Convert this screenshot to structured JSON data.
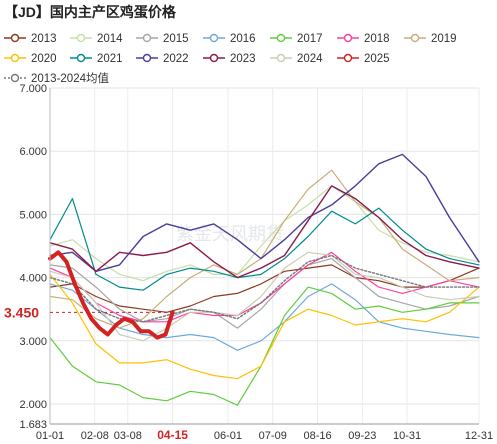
{
  "page": {
    "title": "【JD】国内主产区鸡蛋价格",
    "watermark": "紫金天风期货"
  },
  "chart_data": {
    "type": "line",
    "title": "【JD】国内主产区鸡蛋价格",
    "xlabel": "",
    "ylabel": "",
    "x_range": [
      1,
      365
    ],
    "ylim": [
      1.683,
      7.0
    ],
    "y_ticks": [
      1.683,
      2.0,
      3.0,
      4.0,
      5.0,
      6.0,
      7.0
    ],
    "y_tick_labels": [
      "1.683",
      "2.000",
      "3.000",
      "4.000",
      "5.000",
      "6.000",
      "7.000"
    ],
    "x_ticks": [
      {
        "day": 1,
        "label": "01-01"
      },
      {
        "day": 39,
        "label": "02-08"
      },
      {
        "day": 67,
        "label": "03-08"
      },
      {
        "day": 105,
        "label": "04-15"
      },
      {
        "day": 152,
        "label": "06-01"
      },
      {
        "day": 190,
        "label": "07-09"
      },
      {
        "day": 228,
        "label": "08-16"
      },
      {
        "day": 266,
        "label": "09-23"
      },
      {
        "day": 304,
        "label": "10-31"
      },
      {
        "day": 365,
        "label": "12-31"
      }
    ],
    "highlight_tick": "04-15",
    "current_value_label": "3.450",
    "legend_position": "top",
    "grid": true,
    "series": [
      {
        "name": "2013",
        "color": "#8b3a1e",
        "width": 1.2,
        "dash": "",
        "x": [
          1,
          20,
          40,
          60,
          80,
          100,
          120,
          140,
          160,
          180,
          200,
          220,
          240,
          260,
          280,
          300,
          320,
          340,
          365
        ],
        "y": [
          3.85,
          3.9,
          3.7,
          3.55,
          3.5,
          3.45,
          3.55,
          3.7,
          3.75,
          3.9,
          4.1,
          4.15,
          4.2,
          4.0,
          3.95,
          3.85,
          3.85,
          3.95,
          4.15
        ]
      },
      {
        "name": "2014",
        "color": "#c6dfa8",
        "width": 1.2,
        "dash": "",
        "x": [
          1,
          20,
          40,
          60,
          80,
          100,
          120,
          140,
          160,
          180,
          200,
          220,
          240,
          260,
          280,
          300,
          320,
          340,
          365
        ],
        "y": [
          4.5,
          4.6,
          4.3,
          4.05,
          3.95,
          4.1,
          4.2,
          4.05,
          4.05,
          4.5,
          4.9,
          5.15,
          5.45,
          5.2,
          4.75,
          4.55,
          4.4,
          4.35,
          4.25
        ]
      },
      {
        "name": "2015",
        "color": "#a6a6a6",
        "width": 1.2,
        "dash": "",
        "x": [
          1,
          20,
          40,
          60,
          80,
          100,
          120,
          140,
          160,
          180,
          200,
          220,
          240,
          260,
          280,
          300,
          320,
          340,
          365
        ],
        "y": [
          4.2,
          4.15,
          3.85,
          3.5,
          3.3,
          3.35,
          3.5,
          3.45,
          3.2,
          3.5,
          3.9,
          4.2,
          4.3,
          4.0,
          3.7,
          3.6,
          3.5,
          3.55,
          3.7
        ]
      },
      {
        "name": "2016",
        "color": "#6fa8dc",
        "width": 1.2,
        "dash": "",
        "x": [
          1,
          20,
          40,
          60,
          80,
          100,
          120,
          140,
          160,
          180,
          200,
          220,
          240,
          260,
          280,
          300,
          320,
          340,
          365
        ],
        "y": [
          3.9,
          3.8,
          3.5,
          3.2,
          3.1,
          3.05,
          3.1,
          3.05,
          2.85,
          3.0,
          3.3,
          3.7,
          3.9,
          3.65,
          3.3,
          3.2,
          3.15,
          3.1,
          3.05
        ]
      },
      {
        "name": "2017",
        "color": "#5fcd3c",
        "width": 1.2,
        "dash": "",
        "x": [
          1,
          20,
          40,
          60,
          80,
          100,
          120,
          140,
          160,
          180,
          200,
          220,
          240,
          260,
          280,
          300,
          320,
          340,
          365
        ],
        "y": [
          3.05,
          2.6,
          2.35,
          2.3,
          2.1,
          2.05,
          2.2,
          2.15,
          1.98,
          2.6,
          3.4,
          3.85,
          3.75,
          3.5,
          3.55,
          3.45,
          3.5,
          3.6,
          3.6
        ]
      },
      {
        "name": "2018",
        "color": "#ff3fa4",
        "width": 1.2,
        "dash": "",
        "x": [
          1,
          20,
          40,
          60,
          80,
          100,
          120,
          140,
          160,
          180,
          200,
          220,
          240,
          260,
          280,
          300,
          320,
          340,
          365
        ],
        "y": [
          4.15,
          4.0,
          3.6,
          3.4,
          3.3,
          3.3,
          3.45,
          3.4,
          3.4,
          3.6,
          3.9,
          4.2,
          4.4,
          4.1,
          3.85,
          3.75,
          3.85,
          3.95,
          3.85
        ]
      },
      {
        "name": "2019",
        "color": "#c8ad78",
        "width": 1.2,
        "dash": "",
        "x": [
          1,
          20,
          40,
          60,
          80,
          100,
          120,
          140,
          160,
          180,
          200,
          220,
          240,
          260,
          280,
          300,
          320,
          340,
          365
        ],
        "y": [
          3.7,
          3.65,
          3.35,
          3.2,
          3.35,
          3.7,
          4.0,
          4.2,
          4.05,
          4.3,
          4.9,
          5.4,
          5.7,
          5.2,
          4.95,
          4.45,
          4.2,
          3.95,
          4.0
        ]
      },
      {
        "name": "2020",
        "color": "#ffc000",
        "width": 1.2,
        "dash": "",
        "x": [
          1,
          20,
          40,
          60,
          80,
          100,
          120,
          140,
          160,
          180,
          200,
          220,
          240,
          260,
          280,
          300,
          320,
          340,
          365
        ],
        "y": [
          4.05,
          3.6,
          2.95,
          2.65,
          2.65,
          2.7,
          2.55,
          2.45,
          2.4,
          2.6,
          3.3,
          3.5,
          3.4,
          3.25,
          3.3,
          3.35,
          3.3,
          3.45,
          3.85
        ]
      },
      {
        "name": "2021",
        "color": "#008b8b",
        "width": 1.2,
        "dash": "",
        "x": [
          1,
          20,
          40,
          60,
          80,
          100,
          120,
          140,
          160,
          180,
          200,
          220,
          240,
          260,
          280,
          300,
          320,
          340,
          365
        ],
        "y": [
          4.6,
          5.25,
          4.05,
          3.85,
          3.8,
          4.05,
          4.15,
          4.1,
          4.0,
          4.05,
          4.3,
          4.65,
          5.05,
          4.85,
          5.1,
          4.75,
          4.45,
          4.3,
          4.2
        ]
      },
      {
        "name": "2022",
        "color": "#4b3c9c",
        "width": 1.4,
        "dash": "",
        "x": [
          1,
          20,
          40,
          60,
          80,
          100,
          120,
          140,
          160,
          180,
          200,
          220,
          240,
          260,
          280,
          300,
          320,
          340,
          365
        ],
        "y": [
          4.35,
          4.4,
          4.1,
          4.2,
          4.65,
          4.85,
          4.75,
          4.85,
          4.6,
          4.3,
          4.6,
          4.95,
          5.15,
          5.45,
          5.8,
          5.95,
          5.6,
          4.95,
          4.25
        ]
      },
      {
        "name": "2023",
        "color": "#8b1a4a",
        "width": 1.4,
        "dash": "",
        "x": [
          1,
          20,
          40,
          60,
          80,
          100,
          120,
          140,
          160,
          180,
          200,
          220,
          240,
          260,
          280,
          300,
          320,
          340,
          365
        ],
        "y": [
          4.55,
          4.45,
          4.1,
          4.4,
          4.35,
          4.4,
          4.55,
          4.25,
          4.0,
          4.15,
          4.35,
          4.9,
          5.45,
          5.25,
          4.95,
          4.6,
          4.35,
          4.25,
          4.15
        ]
      },
      {
        "name": "2024",
        "color": "#c9cdb3",
        "width": 1.2,
        "dash": "",
        "x": [
          1,
          20,
          40,
          60,
          80,
          100,
          120,
          140,
          160,
          180,
          200,
          220,
          240,
          260,
          280,
          300,
          320,
          340,
          365
        ],
        "y": [
          4.1,
          4.0,
          3.6,
          3.1,
          3.0,
          3.2,
          3.45,
          3.45,
          3.4,
          3.7,
          4.15,
          4.4,
          4.35,
          4.05,
          4.0,
          3.85,
          3.7,
          3.65,
          3.7
        ]
      },
      {
        "name": "2025",
        "color": "#d32222",
        "width": 4.0,
        "dash": "",
        "x": [
          1,
          8,
          15,
          22,
          29,
          36,
          43,
          50,
          57,
          64,
          71,
          78,
          85,
          92,
          99,
          105
        ],
        "y": [
          4.3,
          4.4,
          4.25,
          3.9,
          3.6,
          3.35,
          3.2,
          3.1,
          3.25,
          3.35,
          3.3,
          3.15,
          3.15,
          3.05,
          3.1,
          3.45
        ]
      },
      {
        "name": "2013-2024均值",
        "color": "#777777",
        "width": 1.4,
        "dash": "2,2",
        "x": [
          1,
          20,
          40,
          60,
          80,
          100,
          120,
          140,
          160,
          180,
          200,
          220,
          240,
          260,
          280,
          300,
          320,
          340,
          365
        ],
        "y": [
          4.0,
          3.9,
          3.5,
          3.35,
          3.3,
          3.4,
          3.5,
          3.45,
          3.35,
          3.6,
          3.95,
          4.25,
          4.35,
          4.15,
          4.05,
          3.95,
          3.85,
          3.85,
          3.85
        ]
      }
    ]
  }
}
